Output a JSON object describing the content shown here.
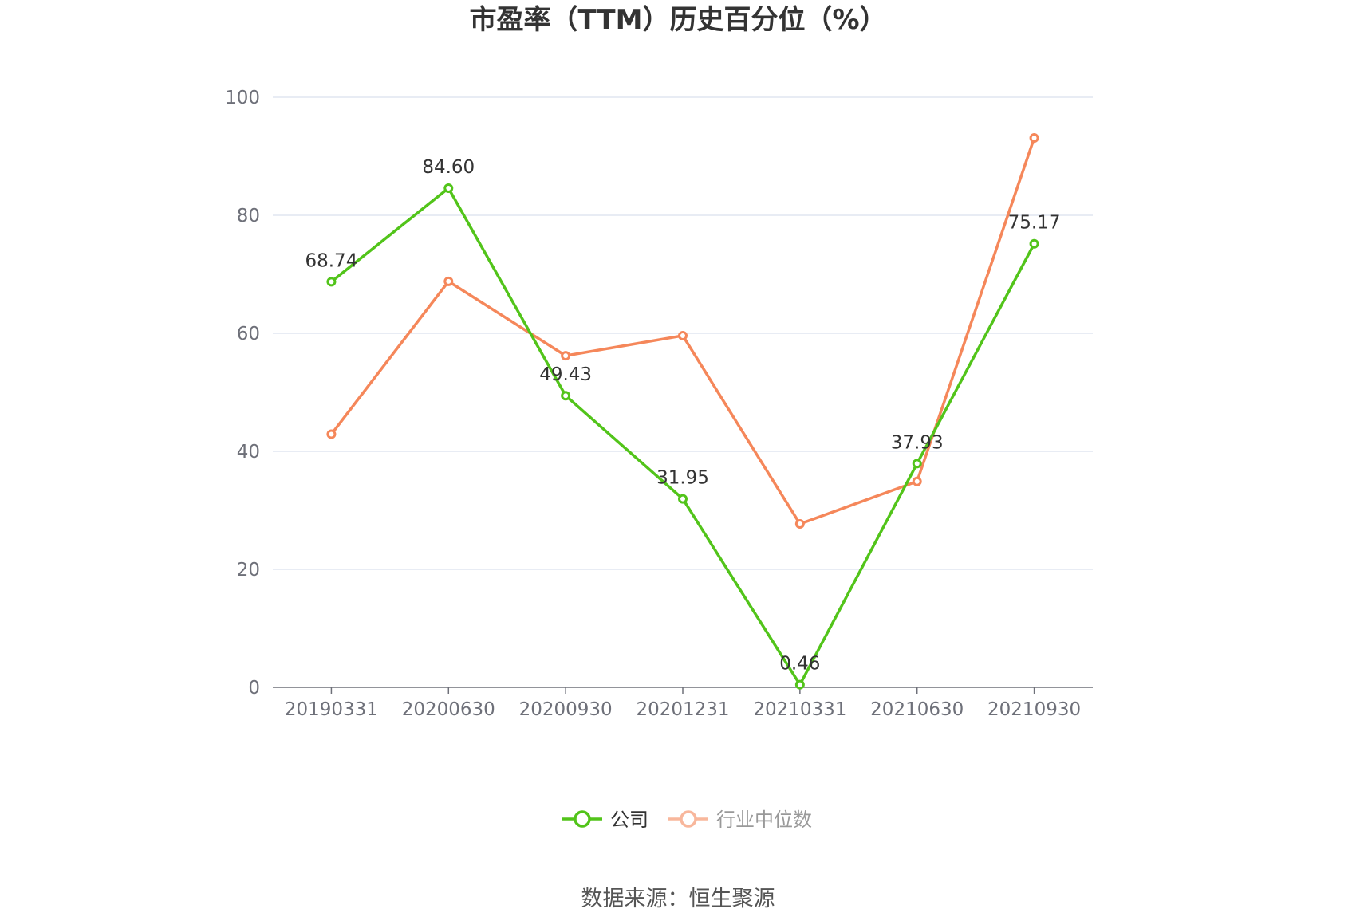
{
  "chart_data": {
    "type": "line",
    "title": "市盈率（TTM）历史百分位（%）",
    "xlabel": "",
    "ylabel": "",
    "categories": [
      "20190331",
      "20200630",
      "20200930",
      "20201231",
      "20210331",
      "20210630",
      "20210930"
    ],
    "ylim": [
      0,
      100
    ],
    "yticks": [
      0,
      20,
      40,
      60,
      80,
      100
    ],
    "grid": true,
    "legend_position": "bottom",
    "series": [
      {
        "name": "公司",
        "color": "#52c41a",
        "values": [
          68.74,
          84.6,
          49.43,
          31.95,
          0.46,
          37.93,
          75.17
        ],
        "labels": [
          "68.74",
          "84.60",
          "49.43",
          "31.95",
          "0.46",
          "37.93",
          "75.17"
        ]
      },
      {
        "name": "行业中位数",
        "color": "#f5875a",
        "values": [
          42.9,
          68.8,
          56.2,
          59.6,
          27.7,
          34.9,
          93.1
        ]
      }
    ]
  },
  "source": "数据来源：恒生聚源"
}
